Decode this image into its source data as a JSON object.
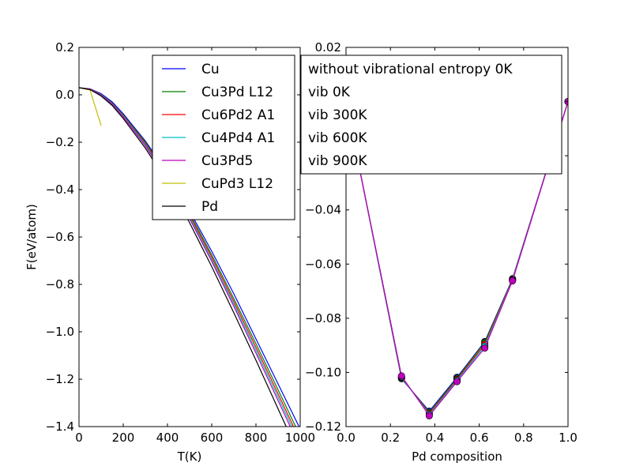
{
  "chart_data": [
    {
      "type": "line",
      "title": "",
      "xlabel": "T(K)",
      "ylabel": "F(eV/atom)",
      "xlim": [
        0,
        1000
      ],
      "ylim": [
        -1.4,
        0.2
      ],
      "xticks": [
        0,
        200,
        400,
        600,
        800,
        1000
      ],
      "xtick_labels": [
        "0",
        "200",
        "400",
        "600",
        "800",
        "1000"
      ],
      "yticks": [
        -1.4,
        -1.2,
        -1.0,
        -0.8,
        -0.6,
        -0.4,
        -0.2,
        0.0,
        0.2
      ],
      "ytick_labels": [
        "−1.4",
        "−1.2",
        "−1.0",
        "−0.8",
        "−0.6",
        "−0.4",
        "−0.2",
        "0.0",
        "0.2"
      ],
      "grid": false,
      "legend": "top-right",
      "series": [
        {
          "name": "Cu",
          "color": "#0000ff",
          "x": [
            0,
            50,
            100,
            150,
            200,
            300,
            400,
            500,
            600,
            700,
            800,
            900,
            1000
          ],
          "y": [
            0.03,
            0.025,
            0.005,
            -0.03,
            -0.08,
            -0.195,
            -0.33,
            -0.49,
            -0.66,
            -0.84,
            -1.03,
            -1.22,
            -1.41
          ]
        },
        {
          "name": "Cu3Pd L12",
          "color": "#008000",
          "x": [
            0,
            50,
            100,
            150,
            200,
            300,
            400,
            500,
            600,
            700,
            800,
            900,
            1000
          ],
          "y": [
            0.03,
            0.024,
            0.002,
            -0.035,
            -0.085,
            -0.2,
            -0.34,
            -0.5,
            -0.675,
            -0.86,
            -1.05,
            -1.245,
            -1.44
          ]
        },
        {
          "name": "Cu6Pd2 A1",
          "color": "#ff0000",
          "x": [
            0,
            50,
            100,
            150,
            200,
            300,
            400,
            500,
            600,
            700,
            800,
            900,
            1000
          ],
          "y": [
            0.03,
            0.024,
            0.001,
            -0.037,
            -0.088,
            -0.205,
            -0.345,
            -0.508,
            -0.685,
            -0.872,
            -1.065,
            -1.262,
            -1.46
          ]
        },
        {
          "name": "Cu4Pd4 A1",
          "color": "#00bfbf",
          "x": [
            0,
            50,
            100,
            150,
            200,
            300,
            400,
            500,
            600,
            700,
            800,
            900,
            1000
          ],
          "y": [
            0.03,
            0.023,
            0.0,
            -0.039,
            -0.09,
            -0.21,
            -0.352,
            -0.516,
            -0.695,
            -0.883,
            -1.078,
            -1.276,
            -1.475
          ]
        },
        {
          "name": "Cu3Pd5",
          "color": "#bf00bf",
          "x": [
            0,
            50,
            100,
            150,
            200,
            300,
            400,
            500,
            600,
            700,
            800,
            900,
            1000
          ],
          "y": [
            0.03,
            0.023,
            -0.002,
            -0.041,
            -0.093,
            -0.215,
            -0.358,
            -0.523,
            -0.703,
            -0.893,
            -1.09,
            -1.29,
            -1.49
          ]
        },
        {
          "name": "CuPd3 L12",
          "color": "#bfbf00",
          "x": [
            0,
            50,
            100
          ],
          "y": [
            0.03,
            0.02,
            -0.13
          ]
        },
        {
          "name": "Pd",
          "color": "#000000",
          "x": [
            0,
            50,
            100,
            150,
            200,
            300,
            400,
            500,
            600,
            700,
            800,
            900,
            1000
          ],
          "y": [
            0.03,
            0.022,
            -0.005,
            -0.045,
            -0.1,
            -0.225,
            -0.37,
            -0.54,
            -0.725,
            -0.92,
            -1.12,
            -1.325,
            -1.53
          ]
        }
      ]
    },
    {
      "type": "line",
      "title": "",
      "xlabel": "Pd composition",
      "ylabel": "",
      "xlim": [
        0.0,
        1.0
      ],
      "ylim": [
        -0.12,
        0.02
      ],
      "xticks": [
        0.0,
        0.2,
        0.4,
        0.6,
        0.8,
        1.0
      ],
      "xtick_labels": [
        "0.0",
        "0.2",
        "0.4",
        "0.6",
        "0.8",
        "1.0"
      ],
      "yticks": [
        -0.12,
        -0.1,
        -0.08,
        -0.06,
        -0.04,
        -0.02,
        0.0,
        0.02
      ],
      "ytick_labels": [
        "−0.12",
        "−0.10",
        "−0.08",
        "−0.06",
        "−0.04",
        "",
        "",
        "0.02"
      ],
      "grid": false,
      "legend": "top-right",
      "markers": true,
      "series": [
        {
          "name": "without vibrational entropy 0K",
          "color": "#0000ff",
          "x": [
            0.0,
            0.25,
            0.375,
            0.5,
            0.625,
            0.75,
            1.0
          ],
          "y": [
            0.0,
            -0.1023,
            -0.1143,
            -0.1018,
            -0.0886,
            -0.0654,
            0.0
          ]
        },
        {
          "name": "vib 0K",
          "color": "#008000",
          "x": [
            0.0,
            0.25,
            0.375,
            0.5,
            0.625,
            0.75,
            1.0
          ],
          "y": [
            0.0,
            -0.1021,
            -0.1147,
            -0.1022,
            -0.0889,
            -0.0656,
            0.0
          ]
        },
        {
          "name": "vib 300K",
          "color": "#ff0000",
          "x": [
            0.0,
            0.25,
            0.375,
            0.5,
            0.625,
            0.75,
            1.0
          ],
          "y": [
            0.0,
            -0.1018,
            -0.1152,
            -0.1026,
            -0.0896,
            -0.0658,
            0.0
          ]
        },
        {
          "name": "vib 600K",
          "color": "#00bfbf",
          "x": [
            0.0,
            0.25,
            0.375,
            0.5,
            0.625,
            0.75,
            1.0
          ],
          "y": [
            0.0,
            -0.1016,
            -0.1156,
            -0.103,
            -0.0903,
            -0.066,
            0.0
          ]
        },
        {
          "name": "vib 900K",
          "color": "#bf00bf",
          "x": [
            0.0,
            0.25,
            0.375,
            0.5,
            0.625,
            0.75,
            1.0
          ],
          "y": [
            0.0,
            -0.1013,
            -0.116,
            -0.1034,
            -0.091,
            -0.0662,
            0.0
          ]
        }
      ]
    }
  ]
}
